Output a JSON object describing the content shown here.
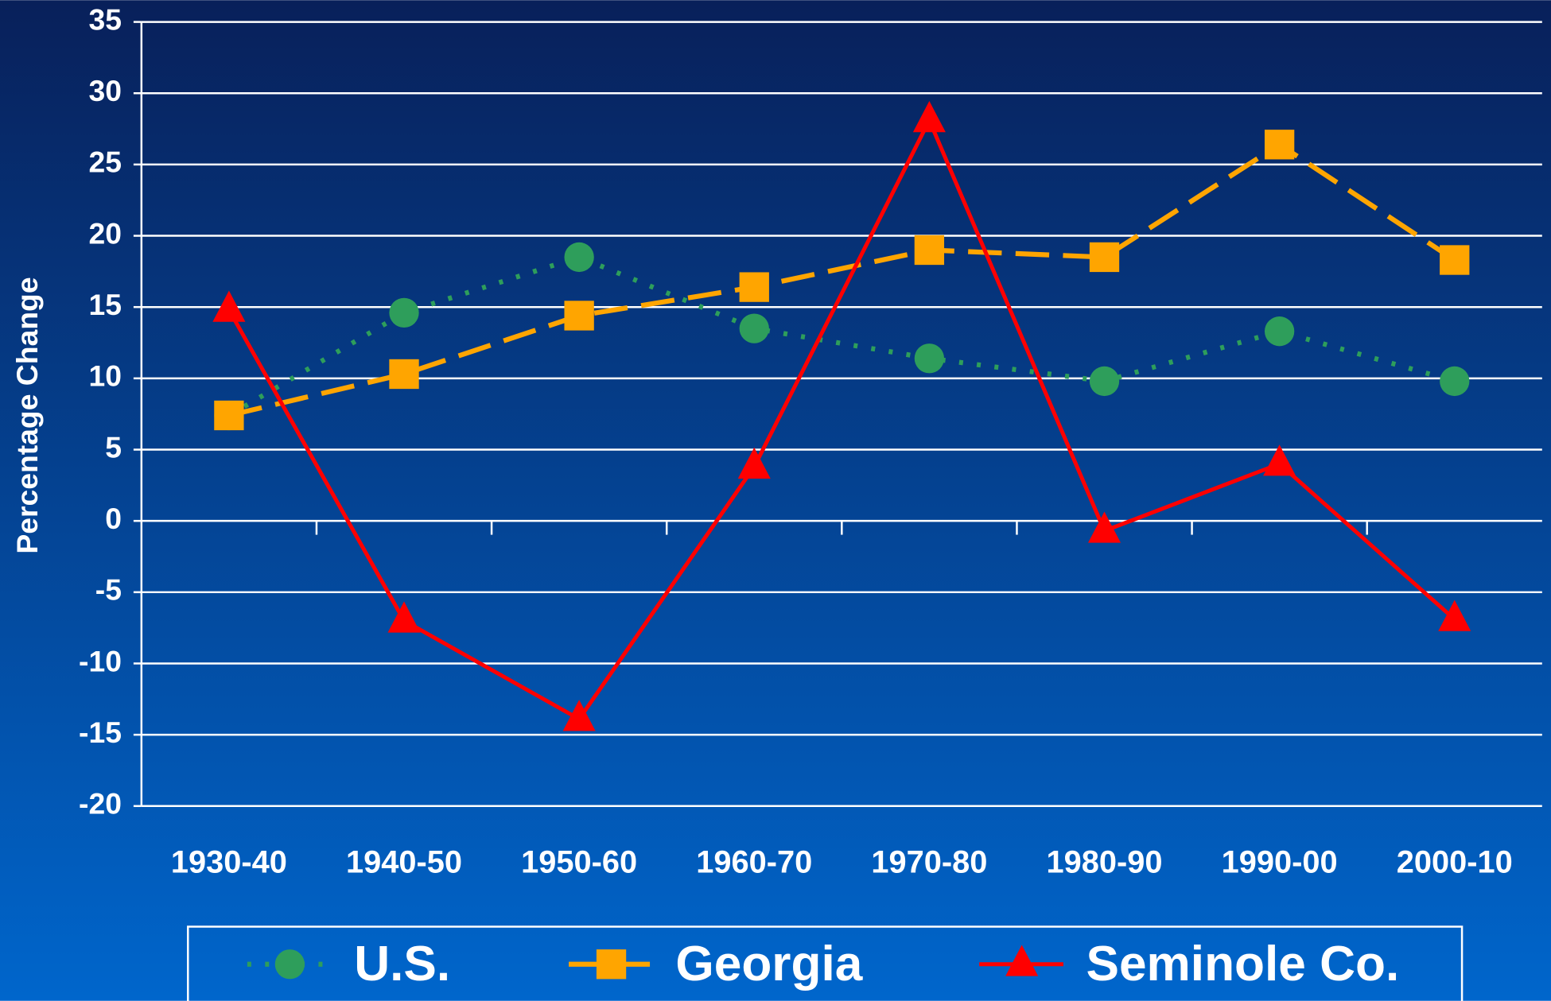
{
  "chart_data": {
    "type": "line",
    "y_label": "Percentage Change",
    "categories": [
      "1930-40",
      "1940-50",
      "1950-60",
      "1960-70",
      "1970-80",
      "1980-90",
      "1990-00",
      "2000-10"
    ],
    "series": [
      {
        "name": "U.S.",
        "color": "#2e9e5b",
        "marker": "circle",
        "linestyle": "dotted",
        "values": [
          7.4,
          14.6,
          18.5,
          13.5,
          11.4,
          9.8,
          13.3,
          9.8
        ]
      },
      {
        "name": "Georgia",
        "color": "#ffa500",
        "marker": "square",
        "linestyle": "dashed",
        "values": [
          7.4,
          10.3,
          14.4,
          16.4,
          19.0,
          18.5,
          26.4,
          18.3
        ]
      },
      {
        "name": "Seminole Co.",
        "color": "#ff0000",
        "marker": "triangle",
        "linestyle": "solid",
        "values": [
          14.8,
          -7.0,
          -13.9,
          3.8,
          28.1,
          -0.7,
          4.0,
          -6.9
        ]
      }
    ],
    "ylim": [
      -20,
      35
    ],
    "yticks": [
      -20,
      -15,
      -10,
      -5,
      0,
      5,
      10,
      15,
      20,
      25,
      30,
      35
    ],
    "grid": true,
    "legend": "bottom"
  }
}
